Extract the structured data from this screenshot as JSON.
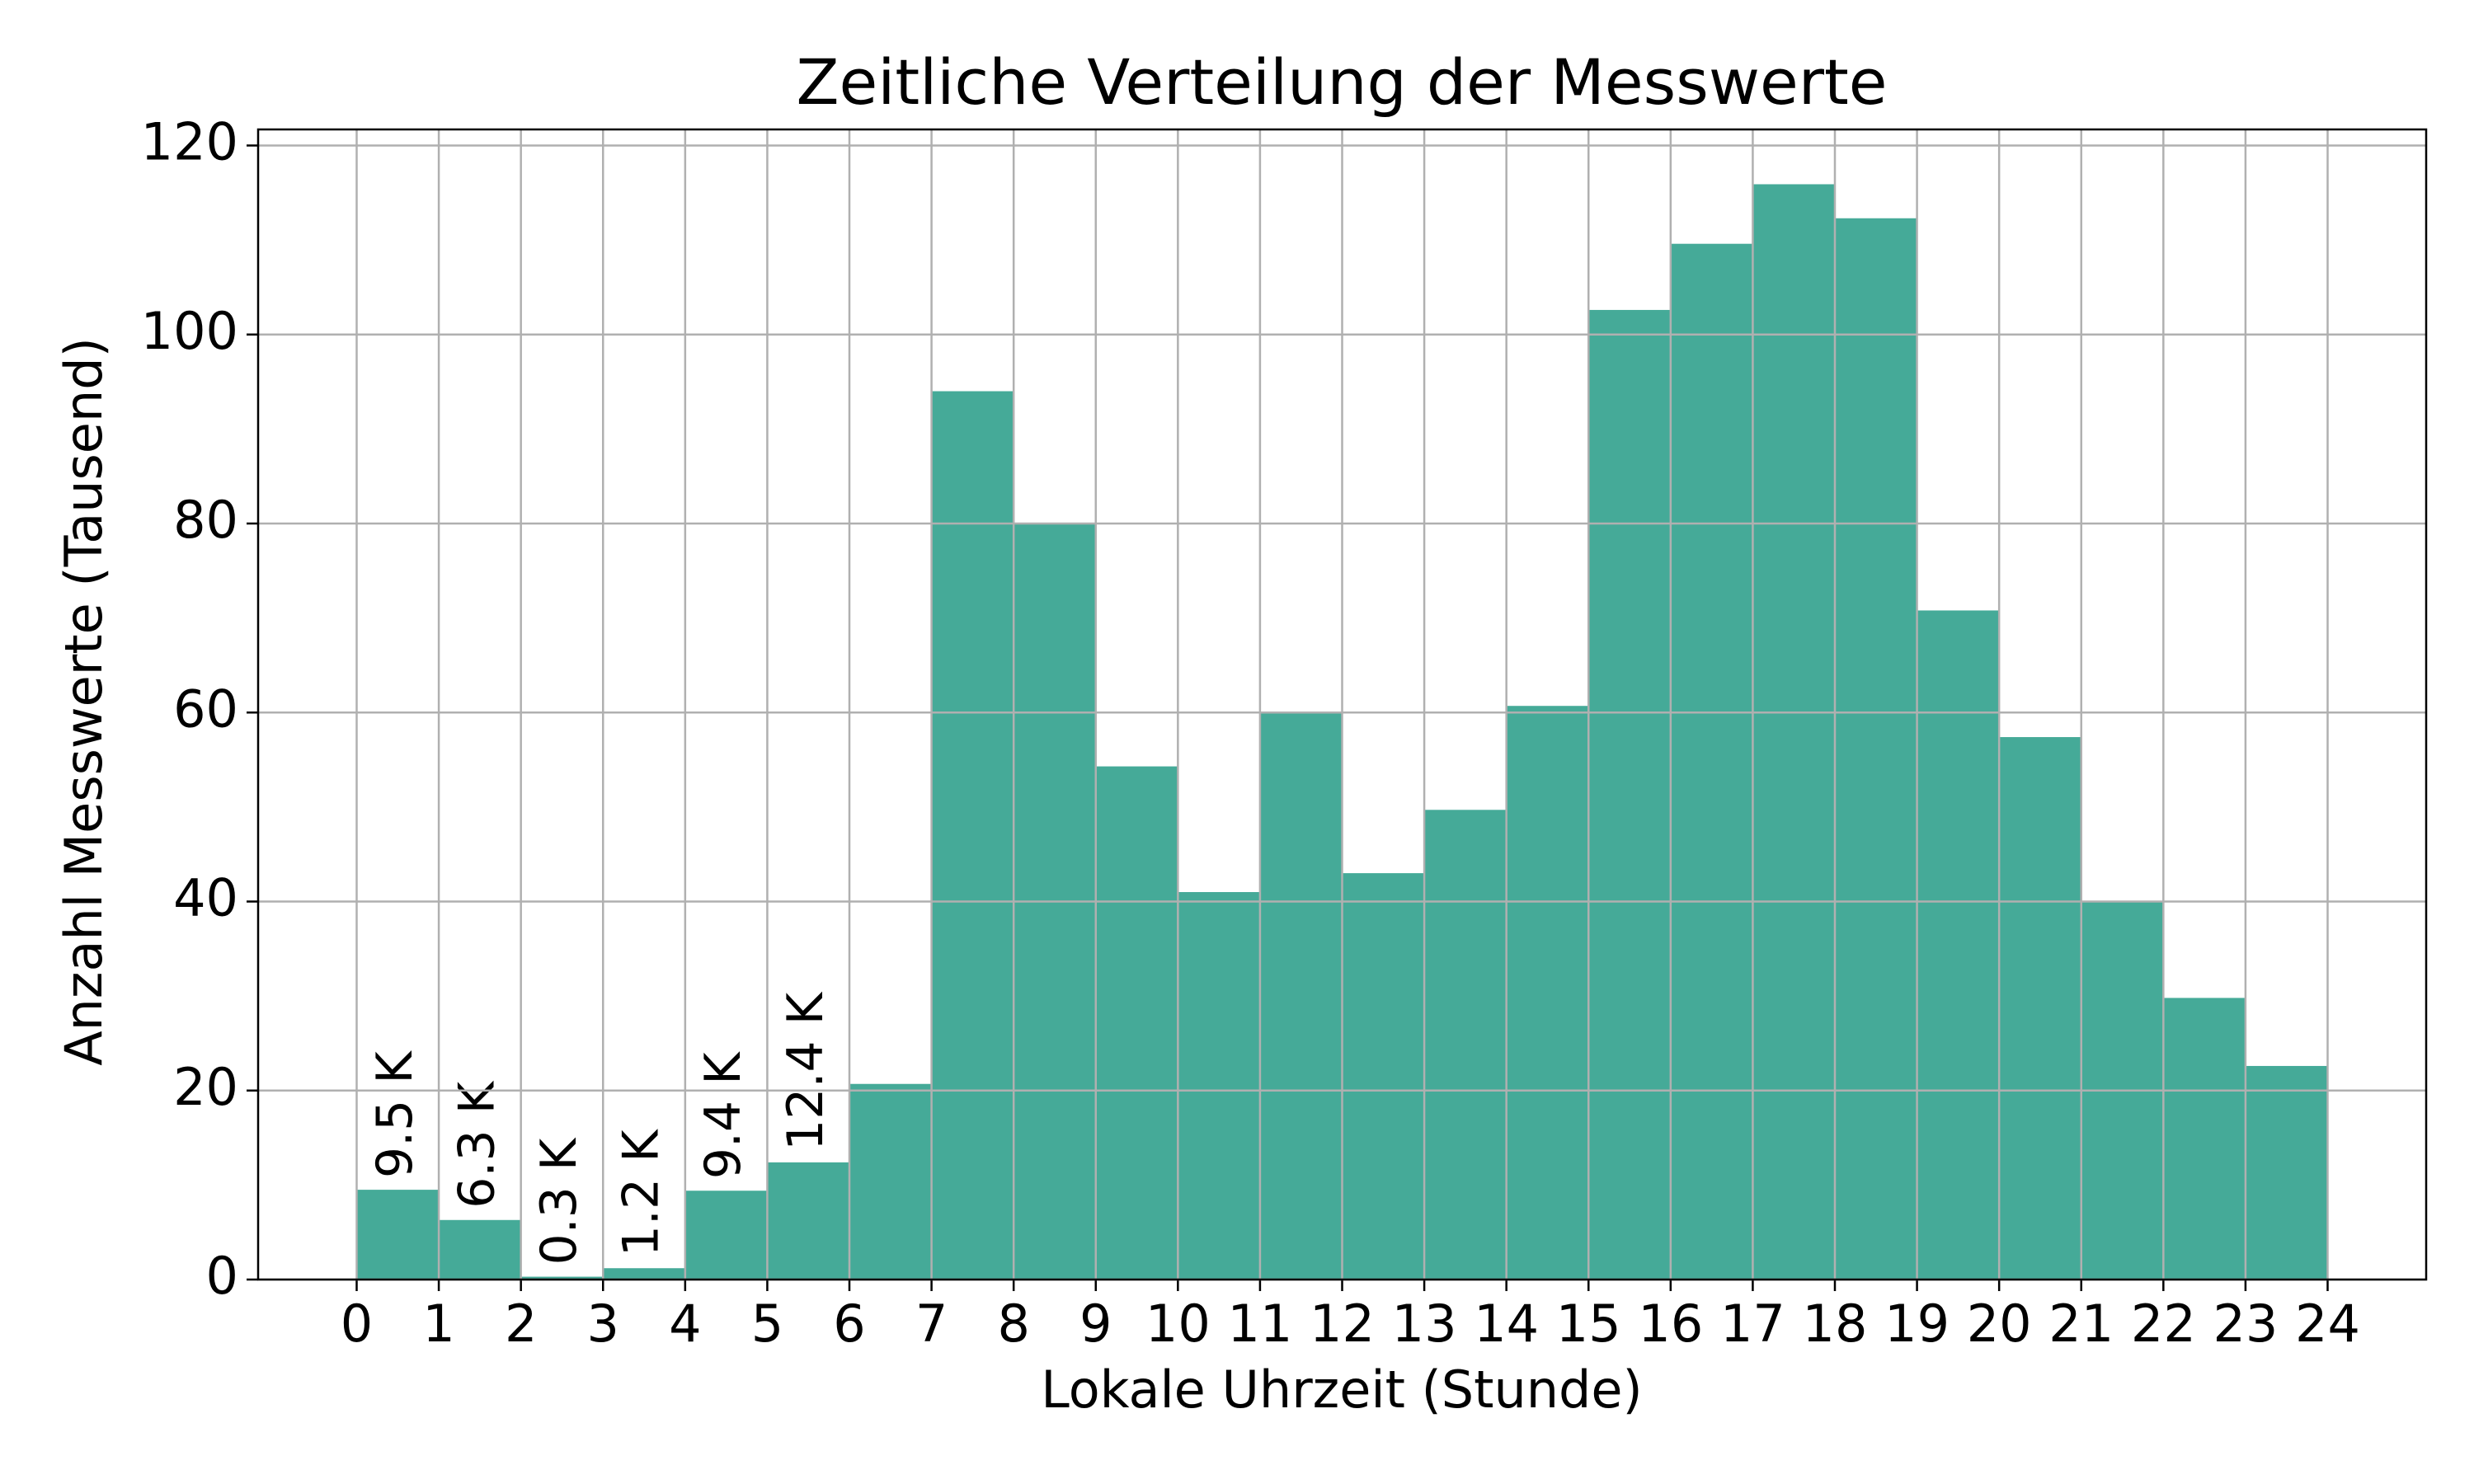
{
  "chart_data": {
    "type": "histogram",
    "title": "Zeitliche Verteilung der Messwerte",
    "x_label": "Lokale Uhrzeit (Stunde)",
    "y_label": "Anzahl Messwerte (Tausend)",
    "bins": [
      0,
      1,
      2,
      3,
      4,
      5,
      6,
      7,
      8,
      9,
      10,
      11,
      12,
      13,
      14,
      15,
      16,
      17,
      18,
      19,
      20,
      21,
      22,
      23,
      24
    ],
    "values": [
      9.5,
      6.3,
      0.3,
      1.2,
      9.4,
      12.4,
      20.7,
      94,
      80,
      54.3,
      41,
      60,
      43,
      49.7,
      60.7,
      102.6,
      109.6,
      115.9,
      112.3,
      70.8,
      57.4,
      40,
      29.8,
      22.6
    ],
    "value_labels": [
      "9.5 K",
      "6.3 K",
      "0.3 K",
      "1.2 K",
      "9.4 K",
      "12.4 K",
      null,
      null,
      null,
      null,
      null,
      null,
      null,
      null,
      null,
      null,
      null,
      null,
      null,
      null,
      null,
      null,
      null,
      null
    ],
    "color": "#45aa98",
    "xlim": [
      -1.2,
      25.2
    ],
    "ylim": [
      0,
      121.7
    ],
    "xticks": [
      0,
      1,
      2,
      3,
      4,
      5,
      6,
      7,
      8,
      9,
      10,
      11,
      12,
      13,
      14,
      15,
      16,
      17,
      18,
      19,
      20,
      21,
      22,
      23,
      24
    ],
    "yticks": [
      0,
      20,
      40,
      60,
      80,
      100,
      120
    ],
    "grid": true
  }
}
